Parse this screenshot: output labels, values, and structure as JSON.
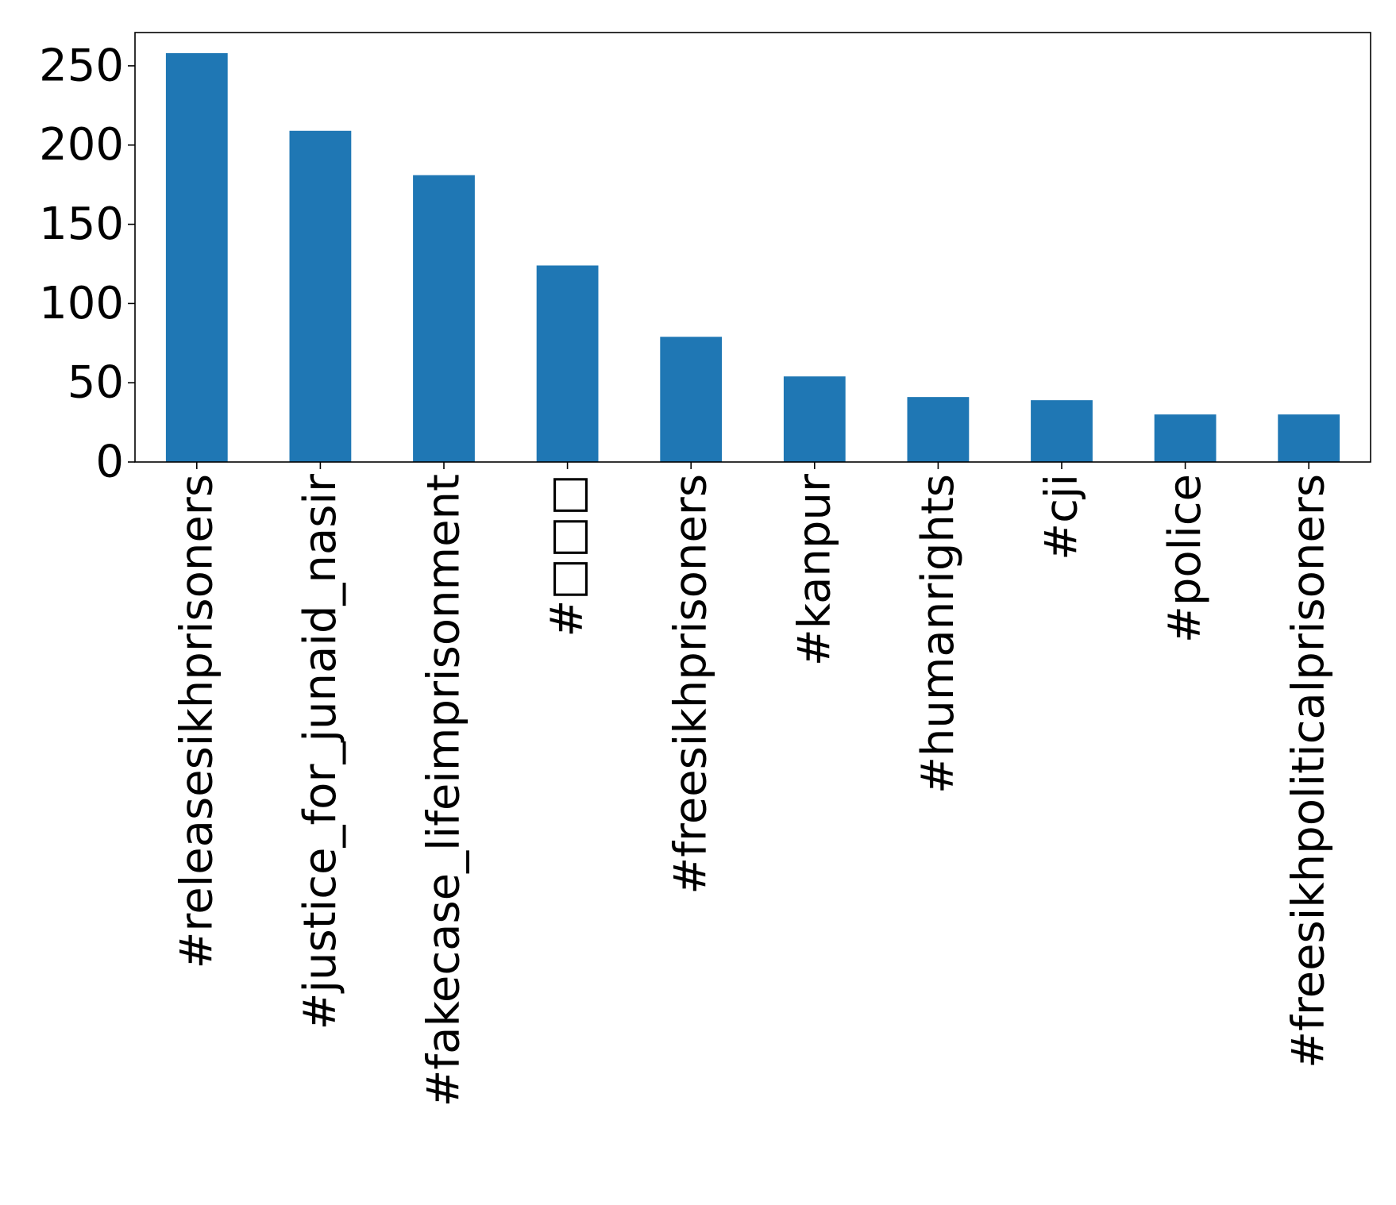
{
  "chart_data": {
    "type": "bar",
    "categories": [
      "#releasesikhprisoners",
      "#justice_for_junaid_nasir",
      "#fakecase_lifeimprisonment",
      "#□□□",
      "#freesikhprisoners",
      "#kanpur",
      "#humanrights",
      "#cji",
      "#police",
      "#freesikhpoliticalprisoners"
    ],
    "values": [
      258,
      209,
      181,
      124,
      79,
      54,
      41,
      39,
      30,
      30
    ],
    "title": "",
    "xlabel": "",
    "ylabel": "",
    "ylim": [
      0,
      271
    ],
    "yticks": [
      0,
      50,
      100,
      150,
      200,
      250
    ],
    "bar_color": "#1f77b4",
    "grid": false,
    "legend": "none"
  }
}
